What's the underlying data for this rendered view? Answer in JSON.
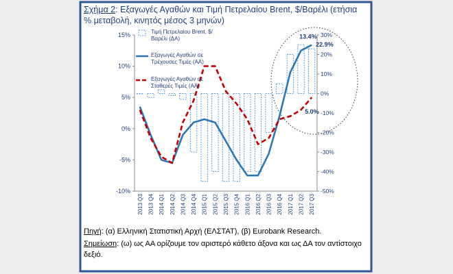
{
  "chart_data": {
    "type": "bar-line",
    "title_label": "Σχήμα 2",
    "title": ": Εξαγωγές Αγαθών και Τιμή Πετρελαίου Brent, $/Βαρέλι (ετήσια % μεταβολή, κινητός μέσος 3 μηνών)",
    "source_label": "Πηγή",
    "source": ": (α) Ελληνική Στατιστική Αρχή (ΕΛΣΤΑΤ), (β) Eurobank Research.",
    "note_label": "Σημείωση",
    "note": ": (ω) ως ΑΑ ορίζουμε τον αριστερό κάθετο άξονα και ως ΔΑ τον αντίστοιχο δεξιό.",
    "categories": [
      "2013 Q3",
      "2013 Q4",
      "2014 Q1",
      "2014 Q2",
      "2014 Q3",
      "2014 Q4",
      "2015 Q1",
      "2015 Q2",
      "2015 Q3",
      "2015 Q4",
      "2016 Q1",
      "2016 Q2",
      "2016 Q3",
      "2016 Q4",
      "2017 Q1",
      "2017 Q2",
      "2017 Q3"
    ],
    "series": [
      {
        "name": "Τιμή Πετρελαίου Brent, $/Βαρέλι (ΔΑ)",
        "color": "#5b9bd5",
        "kind": "bar",
        "axis": "y2",
        "values": [
          0,
          -2,
          2,
          -1,
          -3,
          -30,
          -45,
          -40,
          -45,
          -45,
          -40,
          -40,
          -20,
          5,
          20,
          25,
          22.9
        ],
        "value_labels": [
          null,
          null,
          null,
          null,
          null,
          null,
          null,
          null,
          null,
          null,
          null,
          null,
          null,
          null,
          null,
          null,
          "22.9%"
        ]
      },
      {
        "name": "Εξαγωγές Αγαθών σε Τρέχουσες Τιμές (ΑΑ)",
        "color": "#2e75b6",
        "kind": "line",
        "values": [
          3.5,
          -1,
          -5,
          -5.5,
          -1,
          1,
          1.5,
          1,
          -2,
          -5,
          -7.5,
          -7.5,
          -4,
          2,
          9,
          12.5,
          13.4
        ],
        "value_labels": [
          null,
          null,
          null,
          null,
          null,
          null,
          null,
          null,
          null,
          null,
          null,
          null,
          null,
          null,
          null,
          null,
          "13.4%"
        ]
      },
      {
        "name": "Εξαγωγές Αγαθών σε Σταθερές Τιμές (ΑΑ)",
        "color": "#c00000",
        "kind": "dashed-line",
        "values": [
          3,
          -1.5,
          -4.5,
          -5.5,
          1,
          4.5,
          10,
          10,
          6,
          4,
          1.5,
          -2.5,
          -1.5,
          1.5,
          2,
          3,
          5.0
        ],
        "value_labels": [
          null,
          null,
          null,
          null,
          null,
          null,
          null,
          null,
          null,
          null,
          null,
          null,
          null,
          null,
          null,
          null,
          "5.0%"
        ]
      }
    ],
    "ylim": [
      -10,
      15
    ],
    "yticks": [
      {
        "value": -10,
        "label": "-10%"
      },
      {
        "value": -5,
        "label": "-5%"
      },
      {
        "value": 0,
        "label": "0%"
      },
      {
        "value": 5,
        "label": "5%"
      },
      {
        "value": 10,
        "label": "10%"
      },
      {
        "value": 15,
        "label": "15%"
      }
    ],
    "y2lim": [
      -50,
      30
    ],
    "y2ticks": [
      {
        "value": -50,
        "label": "-50%"
      },
      {
        "value": -40,
        "label": "-40%"
      },
      {
        "value": -30,
        "label": "-30%"
      },
      {
        "value": -20,
        "label": "-20%"
      },
      {
        "value": -10,
        "label": "-10%"
      },
      {
        "value": 0,
        "label": "0%"
      },
      {
        "value": 10,
        "label": "10%"
      },
      {
        "value": 20,
        "label": "20%"
      },
      {
        "value": 30,
        "label": "30%"
      }
    ]
  }
}
